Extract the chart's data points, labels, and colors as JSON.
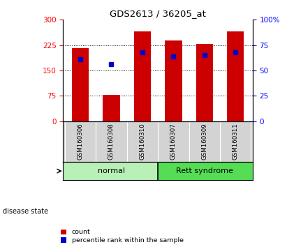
{
  "title": "GDS2613 / 36205_at",
  "samples": [
    "GSM160306",
    "GSM160308",
    "GSM160310",
    "GSM160307",
    "GSM160309",
    "GSM160311"
  ],
  "counts": [
    215,
    78,
    265,
    238,
    228,
    265
  ],
  "percentile_positions": [
    183,
    168,
    204,
    192,
    196,
    204
  ],
  "bar_color": "#cc0000",
  "percentile_color": "#0000cc",
  "left_ylim": [
    0,
    300
  ],
  "right_ylim": [
    0,
    100
  ],
  "left_yticks": [
    0,
    75,
    150,
    225,
    300
  ],
  "right_yticks": [
    0,
    25,
    50,
    75,
    100
  ],
  "right_yticklabels": [
    "0",
    "25",
    "50",
    "75",
    "100%"
  ],
  "grid_values": [
    75,
    150,
    225
  ],
  "background_color": "#ffffff",
  "bar_width": 0.55,
  "normal_color": "#90ee90",
  "rett_color": "#44cc44",
  "tick_bg": "#d3d3d3"
}
